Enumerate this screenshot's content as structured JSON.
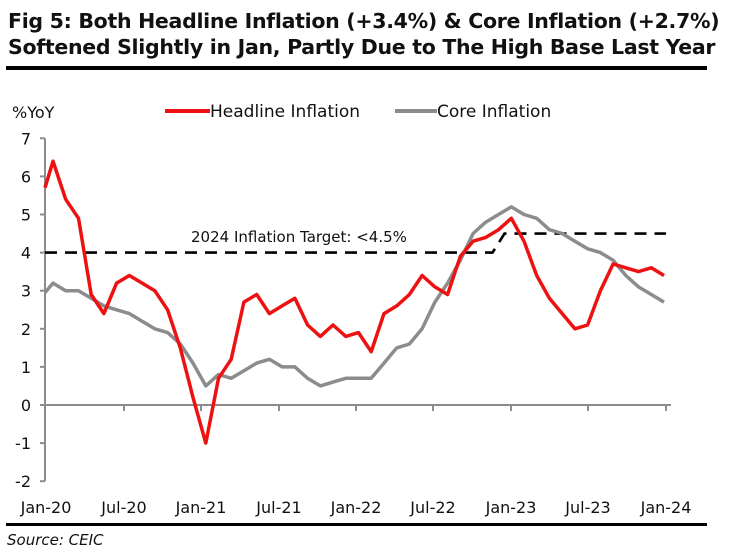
{
  "title": {
    "line1": "Fig 5: Both Headline Inflation (+3.4%) & Core Inflation (+2.7%)",
    "line2": "Softened Slightly in Jan, Partly Due to The High Base Last Year"
  },
  "source": "Source: CEIC",
  "colors": {
    "headline": "#ee1111",
    "core": "#8c8c8c",
    "target": "#000000",
    "axis": "#8c8c8c"
  },
  "chart_data": {
    "type": "line",
    "title": "Fig 5: Both Headline Inflation (+3.4%) & Core Inflation (+2.7%) Softened Slightly in Jan, Partly Due to The High Base Last Year",
    "xlabel": "",
    "ylabel": "%YoY",
    "ylim": [
      -2,
      7
    ],
    "yticks": [
      "-2",
      "-1",
      "0",
      "1",
      "2",
      "3",
      "4",
      "5",
      "6",
      "7"
    ],
    "xticks": [
      "Jan-20",
      "Jul-20",
      "Jan-21",
      "Jul-21",
      "Jan-22",
      "Jul-22",
      "Jan-23",
      "Jul-23",
      "Jan-24"
    ],
    "grid": false,
    "legend": "top-center",
    "x": [
      "Jan-20",
      "Feb-20",
      "Mar-20",
      "Apr-20",
      "May-20",
      "Jun-20",
      "Jul-20",
      "Aug-20",
      "Sep-20",
      "Oct-20",
      "Nov-20",
      "Dec-20",
      "Jan-21",
      "Feb-21",
      "Mar-21",
      "Apr-21",
      "May-21",
      "Jun-21",
      "Jul-21",
      "Aug-21",
      "Sep-21",
      "Oct-21",
      "Nov-21",
      "Dec-21",
      "Jan-22",
      "Feb-22",
      "Mar-22",
      "Apr-22",
      "May-22",
      "Jun-22",
      "Jul-22",
      "Aug-22",
      "Sep-22",
      "Oct-22",
      "Nov-22",
      "Dec-22",
      "Jan-23",
      "Feb-23",
      "Mar-23",
      "Apr-23",
      "May-23",
      "Jun-23",
      "Jul-23",
      "Aug-23",
      "Sep-23",
      "Oct-23",
      "Nov-23",
      "Dec-23",
      "Jan-24"
    ],
    "series": [
      {
        "name": "Headline Inflation",
        "values": [
          6.4,
          5.4,
          4.9,
          2.9,
          2.4,
          3.2,
          3.4,
          3.2,
          3.0,
          2.5,
          1.5,
          0.2,
          -1.0,
          0.7,
          1.2,
          2.7,
          2.9,
          2.4,
          2.6,
          2.8,
          2.1,
          1.8,
          2.1,
          1.8,
          1.9,
          1.4,
          2.4,
          2.6,
          2.9,
          3.4,
          3.1,
          2.9,
          3.9,
          4.3,
          4.4,
          4.6,
          4.9,
          4.3,
          3.4,
          2.8,
          2.4,
          2.0,
          2.1,
          3.0,
          3.7,
          3.6,
          3.5,
          3.6,
          3.4
        ]
      },
      {
        "name": "Core Inflation",
        "values": [
          3.2,
          3.0,
          3.0,
          2.8,
          2.6,
          2.5,
          2.4,
          2.2,
          2.0,
          1.9,
          1.6,
          1.1,
          0.5,
          0.8,
          0.7,
          0.9,
          1.1,
          1.2,
          1.0,
          1.0,
          0.7,
          0.5,
          0.6,
          0.7,
          0.7,
          0.7,
          1.1,
          1.5,
          1.6,
          2.0,
          2.7,
          3.2,
          3.8,
          4.5,
          4.8,
          5.0,
          5.2,
          5.0,
          4.9,
          4.6,
          4.5,
          4.3,
          4.1,
          4.0,
          3.8,
          3.4,
          3.1,
          2.9,
          2.7
        ]
      },
      {
        "name": "2024 Inflation Target: <4.5%",
        "style": "dashed",
        "values": [
          4,
          4,
          4,
          4,
          4,
          4,
          4,
          4,
          4,
          4,
          4,
          4,
          4,
          4,
          4,
          4,
          4,
          4,
          4,
          4,
          4,
          4,
          4,
          4,
          4,
          4,
          4,
          4,
          4,
          4,
          4,
          4,
          4,
          4,
          4,
          4,
          4.5,
          4.5,
          4.5,
          4.5,
          4.5,
          4.5,
          4.5,
          4.5,
          4.5,
          4.5,
          4.5,
          4.5,
          4.5
        ]
      }
    ],
    "start_value_headline": 5.7,
    "annotation": "2024 Inflation Target: <4.5%",
    "legend_entries": [
      "Headline Inflation",
      "Core Inflation"
    ]
  }
}
